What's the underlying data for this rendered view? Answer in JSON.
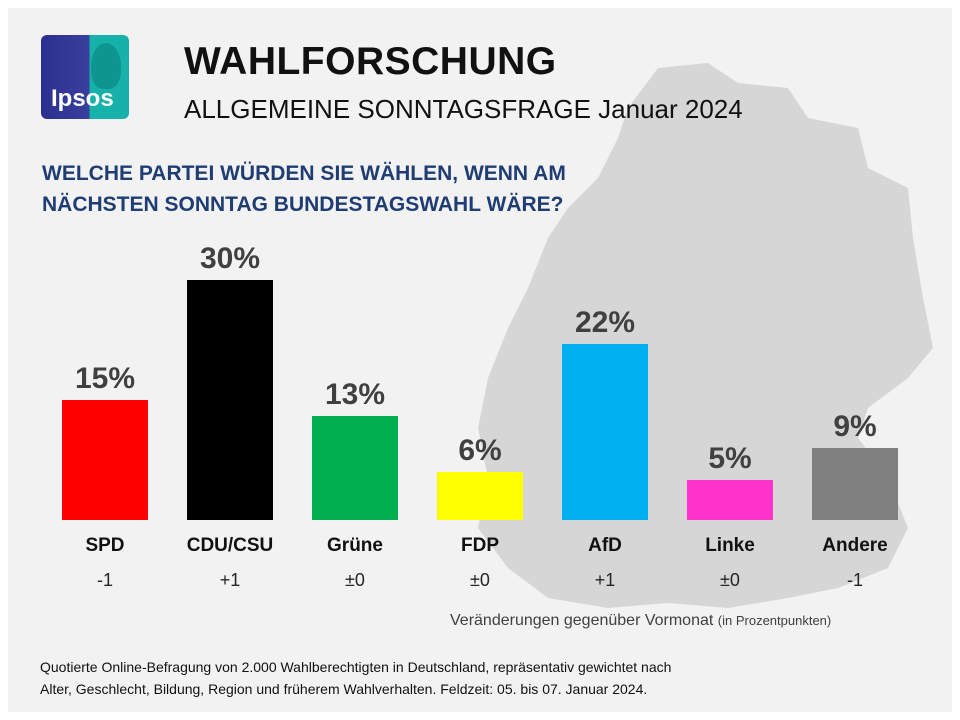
{
  "header": {
    "logo_text": "Ipsos",
    "title": "WAHLFORSCHUNG",
    "subtitle": "ALLGEMEINE SONNTAGSFRAGE Januar 2024",
    "question_line1": "WELCHE PARTEI WÜRDEN SIE WÄHLEN, WENN AM",
    "question_line2": "NÄCHSTEN SONNTAG BUNDESTAGSWAHL WÄRE?"
  },
  "chart_data": {
    "type": "bar",
    "title": "WELCHE PARTEI WÜRDEN SIE WÄHLEN, WENN AM NÄCHSTEN SONNTAG BUNDESTAGSWAHL WÄRE?",
    "xlabel": "",
    "ylabel": "",
    "ylim": [
      0,
      30
    ],
    "categories": [
      "SPD",
      "CDU/CSU",
      "Grüne",
      "FDP",
      "AfD",
      "Linke",
      "Andere"
    ],
    "values": [
      15,
      30,
      13,
      6,
      22,
      5,
      9
    ],
    "value_labels": [
      "15%",
      "30%",
      "13%",
      "6%",
      "22%",
      "5%",
      "9%"
    ],
    "changes": [
      "-1",
      "+1",
      "±0",
      "±0",
      "+1",
      "±0",
      "-1"
    ],
    "colors": [
      "#ff0000",
      "#000000",
      "#00b050",
      "#ffff00",
      "#00b0f0",
      "#ff33cc",
      "#808080"
    ]
  },
  "footer": {
    "changes_label": "Veränderungen gegenüber Vormonat",
    "changes_unit": "(in Prozentpunkten)",
    "source_line1": "Quotierte Online-Befragung  von 2.000 Wahlberechtigten  in Deutschland, repräsentativ gewichtet nach",
    "source_line2": "Alter, Geschlecht, Bildung, Region und früherem Wahlverhalten.  Feldzeit: 05. bis 07. Januar 2024."
  }
}
